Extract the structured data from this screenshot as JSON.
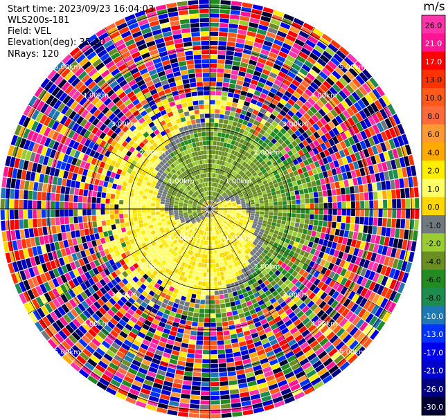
{
  "info": {
    "start_time": "Start time: 2023/09/23 16:04:03",
    "instrument": "WLS200s-181",
    "field": "Field: VEL",
    "elevation": "Elevation(deg): 35.30",
    "nrays": "NRays: 120"
  },
  "colorbar": {
    "unit": "m/s",
    "tick_labels": [
      "26.0",
      "21.0",
      "17.0",
      "13.0",
      "10.0",
      "8.0",
      "6.0",
      "4.0",
      "2.0",
      "1.0",
      "0.0",
      "-1.0",
      "-2.0",
      "-4.0",
      "-6.0",
      "-8.0",
      "-10.0",
      "-13.0",
      "-17.0",
      "-21.0",
      "-26.0",
      "-30.0"
    ],
    "bins": [
      {
        "lo": 26,
        "hi": 30,
        "color": "#ff33aa"
      },
      {
        "lo": 21,
        "hi": 26,
        "color": "#ff1493"
      },
      {
        "lo": 17,
        "hi": 21,
        "color": "#ff0000"
      },
      {
        "lo": 13,
        "hi": 17,
        "color": "#ff3300"
      },
      {
        "lo": 10,
        "hi": 13,
        "color": "#ff5a1a"
      },
      {
        "lo": 8,
        "hi": 10,
        "color": "#ff6a3a"
      },
      {
        "lo": 6,
        "hi": 8,
        "color": "#ff9933"
      },
      {
        "lo": 4,
        "hi": 6,
        "color": "#ffaa00"
      },
      {
        "lo": 2,
        "hi": 4,
        "color": "#ffee00"
      },
      {
        "lo": 1,
        "hi": 2,
        "color": "#ffff66"
      },
      {
        "lo": 0,
        "hi": 1,
        "color": "#ffd700"
      },
      {
        "lo": -1,
        "hi": 0,
        "color": "#707880"
      },
      {
        "lo": -2,
        "hi": -1,
        "color": "#9acd32"
      },
      {
        "lo": -4,
        "hi": -2,
        "color": "#6b8e23"
      },
      {
        "lo": -6,
        "hi": -4,
        "color": "#228b22"
      },
      {
        "lo": -8,
        "hi": -6,
        "color": "#1e8c4e"
      },
      {
        "lo": -10,
        "hi": -8,
        "color": "#1f77b4"
      },
      {
        "lo": -13,
        "hi": -10,
        "color": "#0033ff"
      },
      {
        "lo": -17,
        "hi": -13,
        "color": "#0000ee"
      },
      {
        "lo": -21,
        "hi": -17,
        "color": "#0000cd"
      },
      {
        "lo": -26,
        "hi": -21,
        "color": "#000080"
      },
      {
        "lo": -30,
        "hi": -26,
        "color": "#000033"
      }
    ]
  },
  "chart_data": {
    "type": "heatmap",
    "subtype": "polar-ppi",
    "field": "VEL",
    "elevation_deg": 35.3,
    "n_rays": 120,
    "range_rings": [
      {
        "range_km": 1.0,
        "label": "1.00km"
      },
      {
        "range_km": 2.0,
        "label": "2.00km"
      },
      {
        "range_km": 3.0,
        "label": "3.00km"
      },
      {
        "range_km": 4.0,
        "label": "4.00km"
      },
      {
        "range_km": 5.0,
        "label": "5.00km"
      }
    ],
    "max_range_km": 5.2,
    "regions": [
      {
        "description": "near-center positive/zero band",
        "range_km": [
          0.3,
          2.3
        ],
        "azimuth_center_deg": 300,
        "dominant_value_ms": 1.0
      },
      {
        "description": "negative band",
        "range_km": [
          0.3,
          2.3
        ],
        "azimuth_center_deg": 120,
        "dominant_value_ms": -2.0
      },
      {
        "description": "zero crossing band",
        "range_km": [
          0.2,
          2.2
        ],
        "dominant_value_ms": -0.5
      },
      {
        "description": "noisy far field",
        "range_km": [
          3.0,
          5.2
        ],
        "value_range_ms": [
          -30,
          30
        ]
      }
    ]
  }
}
